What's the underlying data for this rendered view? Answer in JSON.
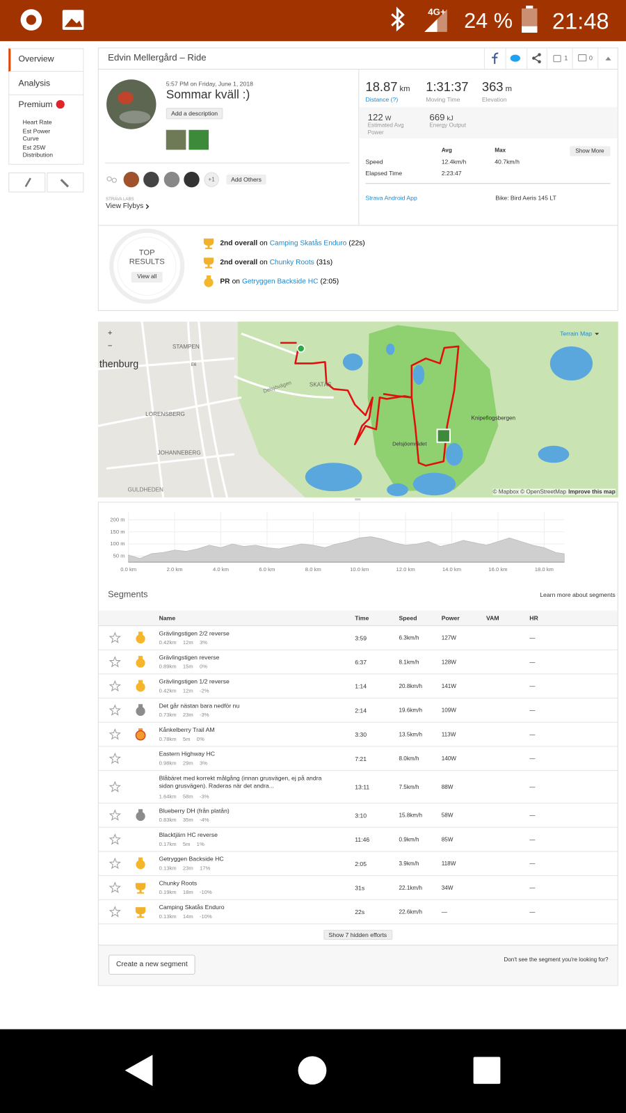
{
  "status_bar": {
    "network": "4G+",
    "battery": "24 %",
    "time": "21:48"
  },
  "sidebar": {
    "tabs": [
      "Overview",
      "Analysis",
      "Premium"
    ],
    "premium_items": [
      "Heart Rate",
      "Est Power Curve",
      "Est 25W Distribution"
    ]
  },
  "header": {
    "title": "Edvin Mellergård – Ride",
    "kudos": "1",
    "comments": "0"
  },
  "activity": {
    "datetime": "5:57 PM on Friday, June 1, 2018",
    "name": "Sommar kväll :)",
    "add_description": "Add a description",
    "extra_athletes": "+1",
    "add_others": "Add Others",
    "labs": "STRAVA LABS",
    "flybys": "View Flybys"
  },
  "stats": {
    "primary": [
      {
        "value": "18.87",
        "unit": "km",
        "label": "Distance (?)"
      },
      {
        "value": "1:31:37",
        "label": "Moving Time"
      },
      {
        "value": "363",
        "unit": "m",
        "label": "Elevation"
      }
    ],
    "secondary": [
      {
        "value": "122",
        "unit": "W",
        "label": "Estimated Avg Power"
      },
      {
        "value": "669",
        "unit": "kJ",
        "label": "Energy Output"
      }
    ],
    "columns": [
      "Avg",
      "Max"
    ],
    "show_more": "Show More",
    "rows": [
      {
        "label": "Speed",
        "avg": "12.4km/h",
        "max": "40.7km/h"
      },
      {
        "label": "Elapsed Time",
        "avg": "2:23:47"
      }
    ],
    "device": "Strava Android App",
    "bike": "Bike: Bird Aeris 145 LT"
  },
  "top_results": {
    "title": "TOP RESULTS",
    "view_all": "View all",
    "items": [
      {
        "icon": "trophy",
        "rank": "2nd overall",
        "on": "on",
        "segment": "Camping Skatås Enduro",
        "time": "(22s)"
      },
      {
        "icon": "trophy",
        "rank": "2nd overall",
        "on": "on",
        "segment": "Chunky Roots",
        "time": "(31s)"
      },
      {
        "icon": "pr",
        "rank": "PR",
        "on": "on",
        "segment": "Getryggen Backside HC",
        "time": "(2:05)"
      }
    ]
  },
  "map": {
    "type": "Terrain Map",
    "zoom_in": "+",
    "zoom_out": "−",
    "labels": [
      "thenburg",
      "STAMPEN",
      "LORENSBERG",
      "JOHANNEBERG",
      "GULDHEDEN",
      "SKATÅS",
      "Delsjövägen",
      "Knipeflogsbergen",
      "Delsjöområdet",
      "E6"
    ],
    "attribution": "© Mapbox © OpenStreetMap",
    "improve": "Improve this map"
  },
  "elevation": {
    "ylim": [
      25,
      230
    ],
    "yticks": [
      {
        "value": 50,
        "label": "50 m"
      },
      {
        "value": 100,
        "label": "100 m"
      },
      {
        "value": 150,
        "label": "150 m"
      },
      {
        "value": 200,
        "label": "200 m"
      }
    ],
    "xlim": [
      0,
      18.87
    ],
    "xticks": [
      {
        "value": 0,
        "label": "0.0 km"
      },
      {
        "value": 2,
        "label": "2.0 km"
      },
      {
        "value": 4,
        "label": "4.0 km"
      },
      {
        "value": 6,
        "label": "6.0 km"
      },
      {
        "value": 8,
        "label": "8.0 km"
      },
      {
        "value": 10,
        "label": "10.0 km"
      },
      {
        "value": 12,
        "label": "12.0 km"
      },
      {
        "value": 14,
        "label": "14.0 km"
      },
      {
        "value": 16,
        "label": "16.0 km"
      },
      {
        "value": 18,
        "label": "18.0 km"
      }
    ],
    "x": [
      0,
      0.5,
      1,
      1.5,
      2,
      2.5,
      3,
      3.5,
      4,
      4.5,
      5,
      5.5,
      6,
      6.5,
      7,
      7.5,
      8,
      8.5,
      9,
      9.5,
      10,
      10.5,
      11,
      11.5,
      12,
      12.5,
      13,
      13.5,
      14,
      14.5,
      15,
      15.5,
      16,
      16.5,
      17,
      17.5,
      18,
      18.5,
      18.87
    ],
    "values": [
      55,
      40,
      60,
      65,
      75,
      70,
      80,
      95,
      85,
      100,
      90,
      95,
      85,
      80,
      90,
      100,
      95,
      85,
      100,
      110,
      125,
      130,
      120,
      105,
      95,
      100,
      110,
      90,
      100,
      115,
      105,
      95,
      110,
      125,
      110,
      95,
      85,
      65,
      60
    ]
  },
  "segments": {
    "title": "Segments",
    "learn_more": "Learn more about segments",
    "columns": [
      "Name",
      "Time",
      "Speed",
      "Power",
      "VAM",
      "HR"
    ],
    "rows": [
      {
        "medal": "pr",
        "name": "Grävlingstigen 2/2 reverse",
        "distance": "0.42km",
        "elevation": "12m",
        "grade": "3%",
        "time": "3:59",
        "speed": "6.3km/h",
        "power": "127W",
        "hr": "—"
      },
      {
        "medal": "pr",
        "name": "Grävlingstigen reverse",
        "distance": "0.89km",
        "elevation": "15m",
        "grade": "0%",
        "time": "6:37",
        "speed": "8.1km/h",
        "power": "128W",
        "hr": "—"
      },
      {
        "medal": "pr",
        "name": "Grävlingstigen 1/2 reverse",
        "distance": "0.42km",
        "elevation": "12m",
        "grade": "-2%",
        "time": "1:14",
        "speed": "20.8km/h",
        "power": "141W",
        "hr": "—"
      },
      {
        "medal": "silver",
        "name": "Det går nästan bara nedför nu",
        "distance": "0.73km",
        "elevation": "23m",
        "grade": "-3%",
        "time": "2:14",
        "speed": "19.6km/h",
        "power": "109W",
        "hr": "—"
      },
      {
        "medal": "bronze",
        "name": "Kånkelberry Trail AM",
        "distance": "0.78km",
        "elevation": "5m",
        "grade": "0%",
        "time": "3:30",
        "speed": "13.5km/h",
        "power": "113W",
        "hr": "—"
      },
      {
        "medal": null,
        "name": "Eastern Highway HC",
        "distance": "0.98km",
        "elevation": "29m",
        "grade": "3%",
        "time": "7:21",
        "speed": "8.0km/h",
        "power": "140W",
        "hr": "—"
      },
      {
        "medal": null,
        "name": "Blåbäret med korrekt målgång (innan grusvägen, ej på andra sidan grusvägen). Raderas när det andra...",
        "distance": "1.64km",
        "elevation": "58m",
        "grade": "-3%",
        "time": "13:11",
        "speed": "7.5km/h",
        "power": "88W",
        "hr": "—"
      },
      {
        "medal": "silver",
        "name": "Blueberry DH (från platån)",
        "distance": "0.83km",
        "elevation": "35m",
        "grade": "-4%",
        "time": "3:10",
        "speed": "15.8km/h",
        "power": "58W",
        "hr": "—"
      },
      {
        "medal": null,
        "name": "Blacktjärn HC reverse",
        "distance": "0.17km",
        "elevation": "5m",
        "grade": "1%",
        "time": "11:46",
        "speed": "0.9km/h",
        "power": "85W",
        "hr": "—"
      },
      {
        "medal": "pr",
        "name": "Getryggen Backside HC",
        "distance": "0.13km",
        "elevation": "23m",
        "grade": "17%",
        "time": "2:05",
        "speed": "3.9km/h",
        "power": "118W",
        "hr": "—"
      },
      {
        "medal": "trophy",
        "name": "Chunky Roots",
        "distance": "0.19km",
        "elevation": "18m",
        "grade": "-10%",
        "time": "31s",
        "speed": "22.1km/h",
        "power": "34W",
        "hr": "—"
      },
      {
        "medal": "trophy",
        "name": "Camping Skatås Enduro",
        "distance": "0.13km",
        "elevation": "14m",
        "grade": "-10%",
        "time": "22s",
        "speed": "22.6km/h",
        "power": "—",
        "hr": "—"
      }
    ],
    "show_hidden": "Show 7 hidden efforts",
    "create": "Create a new segment",
    "missing": "Don't see the segment you're looking for?"
  }
}
